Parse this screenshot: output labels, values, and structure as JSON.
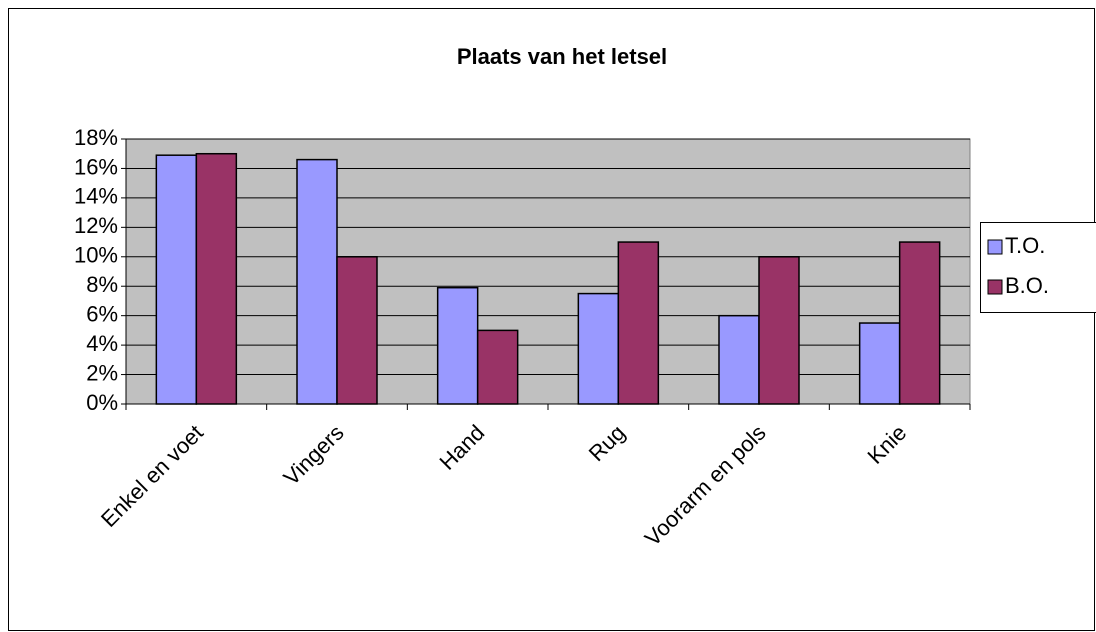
{
  "chart_data": {
    "type": "bar",
    "title": "Plaats van het letsel",
    "categories": [
      "Enkel en voet",
      "Vingers",
      "Hand",
      "Rug",
      "Voorarm en pols",
      "Knie"
    ],
    "series": [
      {
        "name": "T.O.",
        "color": "#9999ff",
        "values": [
          16.9,
          16.6,
          7.9,
          7.5,
          6.0,
          5.5
        ]
      },
      {
        "name": "B.O.",
        "color": "#993366",
        "values": [
          17.0,
          10.0,
          5.0,
          11.0,
          10.0,
          11.0
        ]
      }
    ],
    "ylim": [
      0,
      18
    ],
    "yticks": [
      {
        "value": 0,
        "label": "0%"
      },
      {
        "value": 2,
        "label": "2%"
      },
      {
        "value": 4,
        "label": "4%"
      },
      {
        "value": 6,
        "label": "6%"
      },
      {
        "value": 8,
        "label": "8%"
      },
      {
        "value": 10,
        "label": "10%"
      },
      {
        "value": 12,
        "label": "12%"
      },
      {
        "value": 14,
        "label": "14%"
      },
      {
        "value": 16,
        "label": "16%"
      },
      {
        "value": 18,
        "label": "18%"
      }
    ],
    "grid": true,
    "legend": "right"
  }
}
